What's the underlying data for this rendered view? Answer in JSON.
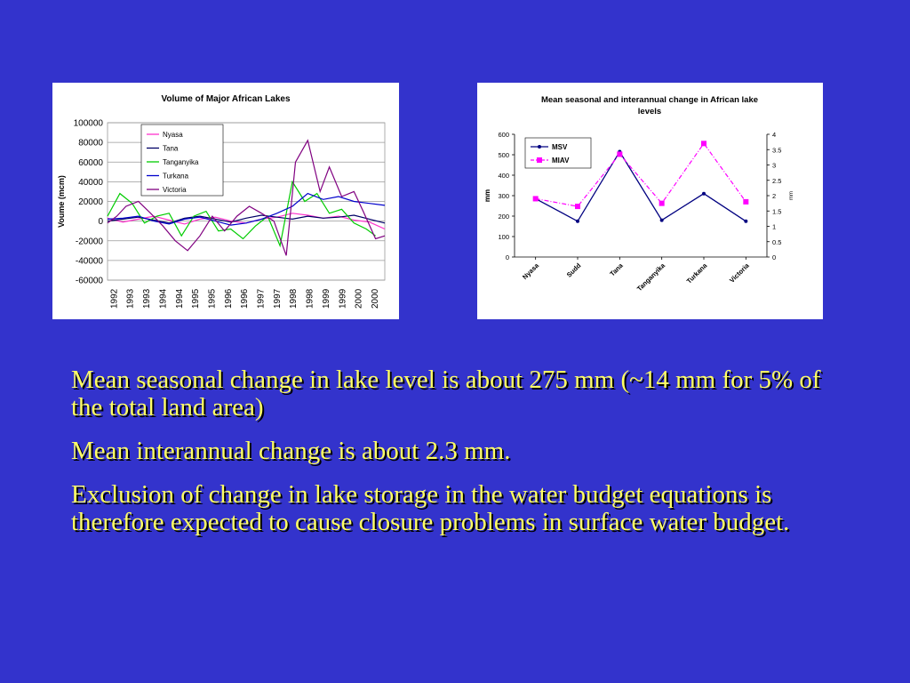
{
  "colors": {
    "background": "#3333cc",
    "text": "#ffff66"
  },
  "chart_data": [
    {
      "type": "line",
      "title": "Volume of Major African Lakes",
      "ylabel": "Voume (mcm)",
      "xlabel": "",
      "ylim": [
        -60000,
        100000
      ],
      "yticks": [
        100000,
        80000,
        60000,
        40000,
        20000,
        0,
        -20000,
        -40000,
        -60000
      ],
      "xlim": [
        1992,
        2001
      ],
      "xticks": [
        "1992",
        "1993",
        "1993",
        "1994",
        "1994",
        "1995",
        "1995",
        "1996",
        "1996",
        "1997",
        "1997",
        "1998",
        "1998",
        "1999",
        "1999",
        "2000",
        "2000"
      ],
      "grid": true,
      "legend_position": "top-left",
      "series": [
        {
          "name": "Nyasa",
          "color": "#ff33cc",
          "x": [
            1992,
            1992.5,
            1993,
            1993.5,
            1994,
            1994.5,
            1995,
            1995.5,
            1996,
            1996.5,
            1997,
            1997.5,
            1998,
            1998.5,
            1999,
            1999.5,
            2000,
            2000.5,
            2001
          ],
          "y": [
            3000,
            -1000,
            2000,
            5000,
            1000,
            -3000,
            2000,
            4000,
            0,
            -2000,
            2000,
            4000,
            8000,
            6000,
            3000,
            5000,
            1000,
            -1000,
            -8000
          ]
        },
        {
          "name": "Tana",
          "color": "#000066",
          "x": [
            1992,
            1992.5,
            1993,
            1993.5,
            1994,
            1994.5,
            1995,
            1995.5,
            1996,
            1996.5,
            1997,
            1997.5,
            1998,
            1998.5,
            1999,
            1999.5,
            2000,
            2000.5,
            2001
          ],
          "y": [
            0,
            2000,
            4000,
            1000,
            -2000,
            3000,
            5000,
            2000,
            -1000,
            3000,
            6000,
            4000,
            2000,
            5000,
            3000,
            4000,
            6000,
            2000,
            -2000
          ]
        },
        {
          "name": "Tanganyika",
          "color": "#00cc00",
          "x": [
            1992,
            1992.4,
            1992.8,
            1993.2,
            1993.6,
            1994,
            1994.4,
            1994.8,
            1995.2,
            1995.6,
            1996,
            1996.4,
            1996.8,
            1997.2,
            1997.6,
            1998,
            1998.4,
            1998.8,
            1999.2,
            1999.6,
            2000,
            2000.4,
            2000.7
          ],
          "y": [
            5000,
            28000,
            18000,
            -2000,
            5000,
            8000,
            -15000,
            5000,
            10000,
            -10000,
            -8000,
            -18000,
            -5000,
            5000,
            -25000,
            40000,
            20000,
            28000,
            8000,
            12000,
            -2000,
            -8000,
            -15000
          ]
        },
        {
          "name": "Turkana",
          "color": "#0000cc",
          "x": [
            1992,
            1992.5,
            1993,
            1993.5,
            1994,
            1994.5,
            1995,
            1995.5,
            1996,
            1996.5,
            1997,
            1997.5,
            1998,
            1998.5,
            1999,
            1999.5,
            2000,
            2000.5,
            2001
          ],
          "y": [
            2000,
            3000,
            5000,
            0,
            -3000,
            2000,
            4000,
            0,
            -4000,
            -2000,
            2000,
            8000,
            15000,
            28000,
            22000,
            25000,
            20000,
            18000,
            16000
          ]
        },
        {
          "name": "Victoria",
          "color": "#800080",
          "x": [
            1992,
            1992.3,
            1992.6,
            1993,
            1993.4,
            1993.8,
            1994.2,
            1994.6,
            1995,
            1995.4,
            1995.8,
            1996.2,
            1996.6,
            1997,
            1997.4,
            1997.8,
            1998.1,
            1998.5,
            1998.9,
            1999.2,
            1999.6,
            2000,
            2000.3,
            2000.7,
            2001
          ],
          "y": [
            -2000,
            5000,
            15000,
            20000,
            8000,
            -5000,
            -20000,
            -30000,
            -15000,
            5000,
            -10000,
            5000,
            15000,
            8000,
            0,
            -35000,
            60000,
            82000,
            30000,
            55000,
            25000,
            30000,
            10000,
            -18000,
            -15000
          ]
        }
      ]
    },
    {
      "type": "line",
      "title": "Mean seasonal and interannual change in African lake levels",
      "ylabel": "mm",
      "y2label": "mm",
      "ylim": [
        0,
        600
      ],
      "yticks": [
        600,
        500,
        400,
        300,
        200,
        100,
        0
      ],
      "y2lim": [
        0,
        4
      ],
      "y2ticks": [
        "4",
        "3.5",
        "3",
        "2.5",
        "2",
        "1.5",
        "1",
        "0.5",
        "0"
      ],
      "categories": [
        "Nyasa",
        "Sudd",
        "Tana",
        "Tanganyika",
        "Turkana",
        "Victoria"
      ],
      "grid": false,
      "legend_position": "top-left",
      "series": [
        {
          "name": "MSV",
          "color": "#000080",
          "axis": "left",
          "values": [
            285,
            175,
            515,
            180,
            310,
            175
          ]
        },
        {
          "name": "MIAV",
          "color": "#ff00ff",
          "axis": "right",
          "values": [
            1.9,
            1.65,
            3.35,
            1.75,
            3.7,
            1.8
          ]
        }
      ]
    }
  ],
  "bullets": [
    "Mean seasonal change in lake level is about 275 mm (~14 mm for 5% of the total land area)",
    "Mean interannual change is about 2.3 mm.",
    "Exclusion of change in lake storage in the water budget equations is therefore expected to cause closure problems in surface water budget."
  ]
}
